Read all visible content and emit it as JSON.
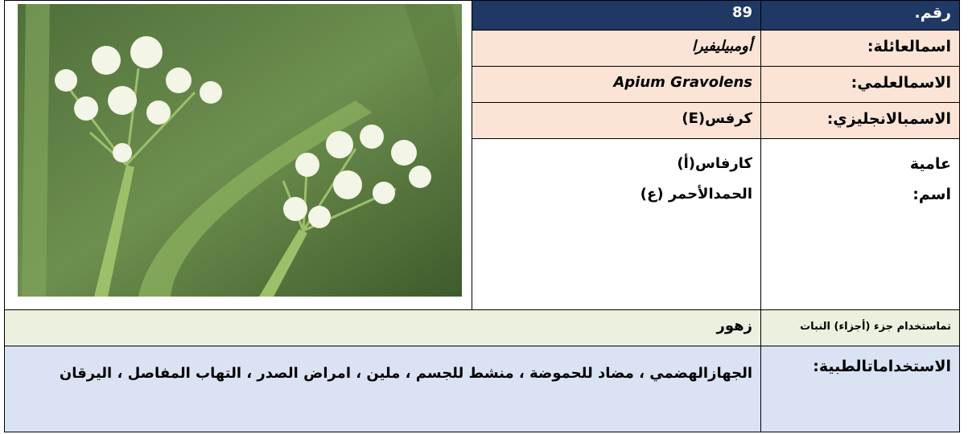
{
  "record": {
    "number_label": "رقم.",
    "number": "89",
    "family_label": "اسمالعائلة:",
    "family": "أومبيليفيرا",
    "scientific_label": "الاسمالعلمي:",
    "scientific": "Apium Gravolens",
    "english_label": "الاسمبالانجليزي:",
    "english": "كرفس(E)",
    "colloquial_label": [
      "عامية",
      "اسم:"
    ],
    "colloquial": [
      "كارفاس(أ)",
      "الحمدالأحمر (ع)"
    ],
    "part_label": "تماستخدام جزء (أجزاء) النبات",
    "part": "زهور",
    "medical_label": "الاستخداماتالطبية:",
    "medical": "الجهازالهضمي ، مضاد للحموضة ، منشط للجسم ، ملين ، امراض الصدر ، التهاب المفاصل ، اليرقان"
  }
}
